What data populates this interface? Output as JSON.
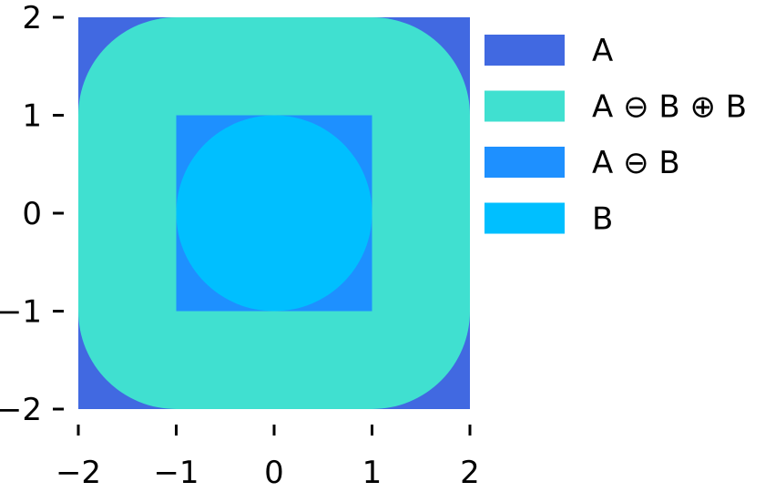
{
  "chart_data": {
    "type": "area",
    "title": "",
    "xlabel": "",
    "ylabel": "",
    "xlim": [
      -2,
      2
    ],
    "ylim": [
      -2,
      2
    ],
    "grid": false,
    "legend_position": "right",
    "x_ticks": [
      -2,
      -1,
      0,
      1,
      2
    ],
    "y_ticks": [
      -2,
      -1,
      0,
      1,
      2
    ],
    "x_tick_labels": [
      "−2",
      "−1",
      "0",
      "1",
      "2"
    ],
    "y_tick_labels": [
      "−2",
      "−1",
      "0",
      "1",
      "2"
    ],
    "series": [
      {
        "name": "A",
        "color": "#4169E1",
        "shape": "square",
        "center": [
          0,
          0
        ],
        "half_width": 2
      },
      {
        "name": "A ⊖ B ⊕ B",
        "color": "#40E0D0",
        "shape": "rounded-square",
        "center": [
          0,
          0
        ],
        "half_width": 2,
        "corner_radius": 1
      },
      {
        "name": "A ⊖ B",
        "color": "#1E90FF",
        "shape": "square",
        "center": [
          0,
          0
        ],
        "half_width": 1
      },
      {
        "name": "B",
        "color": "#00BFFF",
        "shape": "circle",
        "center": [
          0,
          0
        ],
        "radius": 1
      }
    ]
  }
}
